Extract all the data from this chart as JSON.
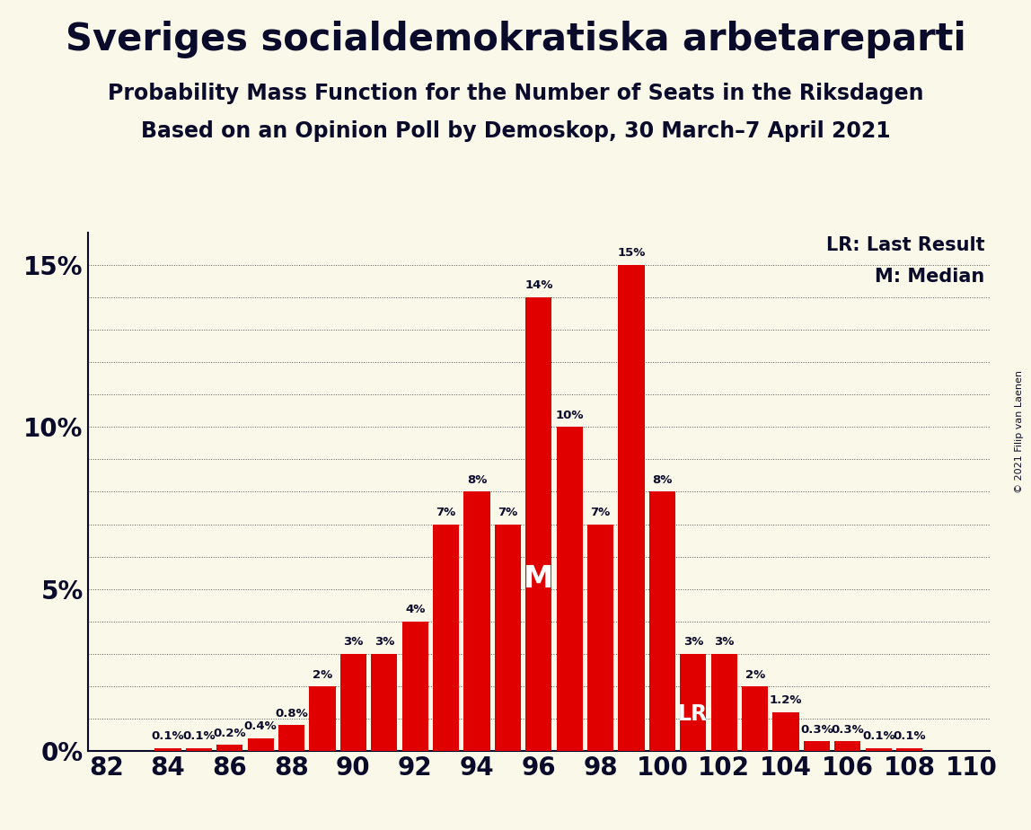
{
  "title": "Sveriges socialdemokratiska arbetareparti",
  "subtitle1": "Probability Mass Function for the Number of Seats in the Riksdagen",
  "subtitle2": "Based on an Opinion Poll by Demoskop, 30 March–7 April 2021",
  "copyright": "© 2021 Filip van Laenen",
  "legend_lr": "LR: Last Result",
  "legend_m": "M: Median",
  "seats": [
    82,
    83,
    84,
    85,
    86,
    87,
    88,
    89,
    90,
    91,
    92,
    93,
    94,
    95,
    96,
    97,
    98,
    99,
    100,
    101,
    102,
    103,
    104,
    105,
    106,
    107,
    108,
    109,
    110
  ],
  "probabilities": [
    0.0,
    0.0,
    0.1,
    0.1,
    0.2,
    0.4,
    0.8,
    2.0,
    3.0,
    3.0,
    4.0,
    7.0,
    8.0,
    7.0,
    14.0,
    10.0,
    7.0,
    15.0,
    8.0,
    3.0,
    3.0,
    2.0,
    1.2,
    0.3,
    0.3,
    0.1,
    0.1,
    0.0,
    0.0
  ],
  "bar_color": "#e00000",
  "background_color": "#faf8e8",
  "text_color": "#0a0a2a",
  "median_seat": 96,
  "lr_seat": 101,
  "ylim_max": 16.0,
  "yticks": [
    0,
    5,
    10,
    15
  ],
  "title_fontsize": 30,
  "subtitle_fontsize": 17,
  "axis_fontsize": 20,
  "bar_label_fontsize": 9.5,
  "legend_fontsize": 15,
  "copyright_fontsize": 8
}
